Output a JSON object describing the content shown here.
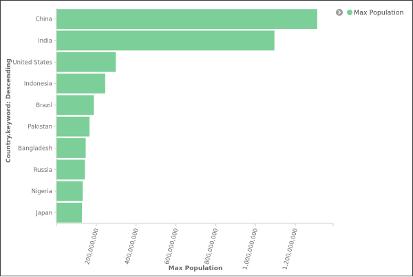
{
  "chart_data": {
    "type": "bar",
    "orientation": "horizontal",
    "categories": [
      "China",
      "India",
      "United States",
      "Indonesia",
      "Brazil",
      "Pakistan",
      "Bangladesh",
      "Russia",
      "Nigeria",
      "Japan"
    ],
    "series": [
      {
        "name": "Max Population",
        "values": [
          1310000000,
          1095000000,
          298000000,
          245000000,
          188000000,
          166000000,
          147000000,
          143000000,
          132000000,
          128000000
        ]
      }
    ],
    "xlabel": "Max Population",
    "ylabel": "Country.keyword: Descending",
    "x_ticks": [
      200000000,
      400000000,
      600000000,
      800000000,
      1000000000,
      1200000000
    ],
    "x_tick_labels": [
      "200,000,000",
      "400,000,000",
      "600,000,000",
      "800,000,000",
      "1,000,000,000",
      "1,200,000,000"
    ],
    "xlim": [
      0,
      1390000000
    ],
    "grid": false,
    "legend_position": "top-right",
    "bar_color": "#7ccf98",
    "legend_toggle_icon": "chevron-right-circle-icon"
  }
}
